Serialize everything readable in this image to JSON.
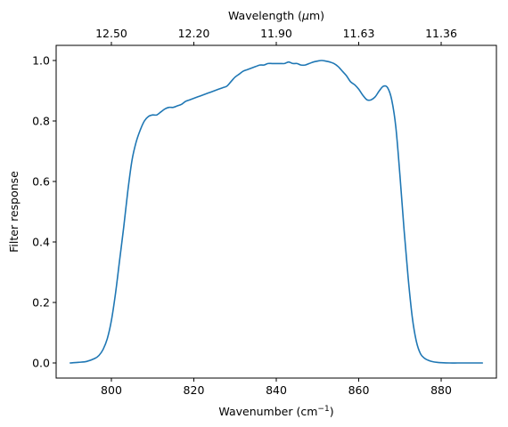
{
  "chart_data": {
    "type": "line",
    "title": "",
    "xlabel": "Wavenumber (cm",
    "xlabel_sup": "−1",
    "xlabel_close": ")",
    "ylabel": "Filter response",
    "top_xlabel": "Wavelength (",
    "top_xlabel_mu": "μ",
    "top_xlabel_close": "m)",
    "xlim": [
      786.6,
      893.4
    ],
    "ylim": [
      -0.05,
      1.05
    ],
    "grid": false,
    "legend": "none",
    "color": "#1f77b4",
    "x_ticks": [
      800,
      820,
      840,
      860,
      880
    ],
    "x_tick_labels": [
      "800",
      "820",
      "840",
      "860",
      "880"
    ],
    "y_ticks": [
      0.0,
      0.2,
      0.4,
      0.6,
      0.8,
      1.0
    ],
    "y_tick_labels": [
      "0.0",
      "0.2",
      "0.4",
      "0.6",
      "0.8",
      "1.0"
    ],
    "top_ticks": [
      800,
      820,
      840,
      860,
      880
    ],
    "top_tick_labels": [
      "12.50",
      "12.20",
      "11.90",
      "11.63",
      "11.36"
    ],
    "series": [
      {
        "x": [
          790,
          792,
          794,
          796,
          797,
          798,
          799,
          800,
          801,
          802,
          803,
          804,
          805,
          806,
          807,
          808,
          809,
          810,
          811,
          812,
          813,
          814,
          815,
          816,
          817,
          818,
          819,
          820,
          821,
          822,
          823,
          824,
          825,
          826,
          827,
          828,
          829,
          830,
          831,
          832,
          833,
          834,
          835,
          836,
          837,
          838,
          839,
          840,
          841,
          842,
          843,
          844,
          845,
          846,
          847,
          848,
          849,
          850,
          851,
          852,
          853,
          854,
          855,
          856,
          857,
          858,
          859,
          860,
          861,
          862,
          863,
          864,
          865,
          866,
          867,
          868,
          869,
          870,
          871,
          872,
          873,
          874,
          875,
          876,
          877,
          878,
          879,
          880,
          882,
          884,
          886,
          888,
          890
        ],
        "y": [
          0.0,
          0.002,
          0.005,
          0.015,
          0.025,
          0.045,
          0.08,
          0.14,
          0.23,
          0.34,
          0.45,
          0.57,
          0.67,
          0.73,
          0.77,
          0.8,
          0.815,
          0.82,
          0.82,
          0.83,
          0.84,
          0.845,
          0.845,
          0.85,
          0.855,
          0.865,
          0.87,
          0.875,
          0.88,
          0.885,
          0.89,
          0.895,
          0.9,
          0.905,
          0.91,
          0.915,
          0.93,
          0.945,
          0.955,
          0.965,
          0.97,
          0.975,
          0.98,
          0.985,
          0.985,
          0.99,
          0.99,
          0.99,
          0.99,
          0.99,
          0.995,
          0.99,
          0.99,
          0.985,
          0.985,
          0.99,
          0.995,
          0.998,
          1.0,
          0.998,
          0.995,
          0.99,
          0.98,
          0.965,
          0.95,
          0.93,
          0.92,
          0.905,
          0.885,
          0.87,
          0.87,
          0.88,
          0.9,
          0.915,
          0.91,
          0.87,
          0.78,
          0.62,
          0.44,
          0.28,
          0.15,
          0.07,
          0.03,
          0.015,
          0.008,
          0.004,
          0.002,
          0.001,
          0.0,
          0.0,
          0.0,
          0.0,
          0.0
        ]
      }
    ]
  }
}
